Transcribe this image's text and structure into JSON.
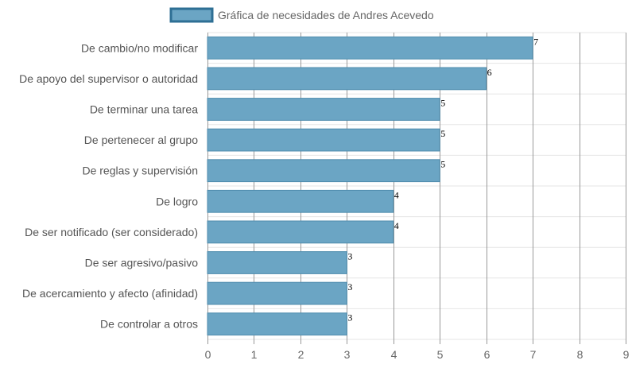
{
  "chart_data": {
    "type": "bar",
    "orientation": "horizontal",
    "title": "",
    "legend": {
      "position": "top",
      "entries": [
        "Gráfica de necesidades de Andres Acevedo"
      ]
    },
    "categories": [
      "De cambio/no modificar",
      "De apoyo del supervisor o autoridad",
      "De terminar una tarea",
      "De pertenecer al grupo",
      "De reglas y supervisión",
      "De logro",
      "De ser notificado (ser considerado)",
      "De ser agresivo/pasivo",
      "De acercamiento y afecto (afinidad)",
      "De controlar a otros"
    ],
    "series": [
      {
        "name": "Gráfica de necesidades de Andres Acevedo",
        "values": [
          7,
          6,
          5,
          5,
          5,
          4,
          4,
          3,
          3,
          3
        ]
      }
    ],
    "xlim": [
      0,
      9
    ],
    "x_ticks": [
      "0",
      "1",
      "2",
      "3",
      "4",
      "5",
      "6",
      "7",
      "8",
      "9"
    ],
    "grid": true,
    "data_labels": true,
    "colors": {
      "bar_fill": "#6ba5c4",
      "bar_border": "#4f8cad",
      "legend_fill": "#6ba5c4",
      "legend_border": "#2e6f94",
      "grid_vertical": "#999999",
      "grid_horizontal": "#e6e6e6"
    }
  }
}
